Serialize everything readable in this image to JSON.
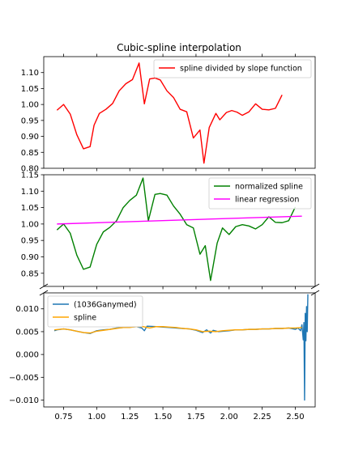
{
  "chart_data": [
    {
      "type": "line",
      "title": "Cubic-spline interpolation",
      "xlim": [
        0.6,
        2.65
      ],
      "ylim": [
        0.8,
        1.15
      ],
      "yticks": [
        0.8,
        0.85,
        0.9,
        0.95,
        1.0,
        1.05,
        1.1
      ],
      "ytick_labels": [
        "0.80",
        "0.85",
        "0.90",
        "0.95",
        "1.00",
        "1.05",
        "1.10"
      ],
      "legend": "top-right",
      "series": [
        {
          "name": "spline divided by slope function",
          "color": "#ff0000",
          "x": [
            0.7,
            0.75,
            0.8,
            0.85,
            0.9,
            0.95,
            0.98,
            1.02,
            1.07,
            1.12,
            1.17,
            1.22,
            1.27,
            1.32,
            1.36,
            1.4,
            1.44,
            1.48,
            1.53,
            1.58,
            1.63,
            1.68,
            1.73,
            1.78,
            1.81,
            1.85,
            1.9,
            1.93,
            1.98,
            2.02,
            2.06,
            2.1,
            2.15,
            2.2,
            2.25,
            2.3,
            2.35,
            2.4,
            2.45,
            2.5,
            2.55
          ],
          "y": [
            0.982,
            1.0,
            0.97,
            0.905,
            0.861,
            0.868,
            0.935,
            0.972,
            0.985,
            1.003,
            1.043,
            1.065,
            1.078,
            1.13,
            1.002,
            1.08,
            1.083,
            1.077,
            1.043,
            1.022,
            0.985,
            0.977,
            0.895,
            0.92,
            0.816,
            0.928,
            0.972,
            0.952,
            0.975,
            0.981,
            0.976,
            0.966,
            0.977,
            1.002,
            0.985,
            0.983,
            0.988,
            1.03,
            null,
            null,
            null
          ]
        }
      ]
    },
    {
      "type": "line",
      "xlim": [
        0.6,
        2.65
      ],
      "ylim": [
        0.81,
        1.15
      ],
      "yticks": [
        0.85,
        0.9,
        0.95,
        1.0,
        1.05,
        1.1,
        1.15
      ],
      "ytick_labels": [
        "0.85",
        "0.90",
        "0.95",
        "1.00",
        "1.05",
        "1.10",
        "1.15"
      ],
      "legend": "top-right",
      "series": [
        {
          "name": "normalized spline",
          "color": "#008000",
          "x": [
            0.7,
            0.75,
            0.8,
            0.85,
            0.9,
            0.95,
            1.0,
            1.05,
            1.1,
            1.15,
            1.2,
            1.25,
            1.3,
            1.35,
            1.39,
            1.44,
            1.48,
            1.53,
            1.58,
            1.63,
            1.68,
            1.73,
            1.78,
            1.82,
            1.86,
            1.91,
            1.95,
            2.0,
            2.05,
            2.1,
            2.15,
            2.2,
            2.25,
            2.3,
            2.35,
            2.4,
            2.45,
            2.5,
            2.55
          ],
          "y": [
            0.982,
            1.0,
            0.972,
            0.905,
            0.862,
            0.869,
            0.938,
            0.976,
            0.99,
            1.01,
            1.05,
            1.072,
            1.088,
            1.14,
            1.01,
            1.09,
            1.093,
            1.088,
            1.055,
            1.03,
            0.998,
            0.988,
            0.908,
            0.934,
            0.828,
            0.942,
            0.988,
            0.968,
            0.992,
            0.998,
            0.994,
            0.985,
            0.998,
            1.022,
            1.005,
            1.004,
            1.01,
            1.052,
            null
          ]
        },
        {
          "name": "linear regression",
          "color": "#ff00ff",
          "x": [
            0.7,
            2.55
          ],
          "y": [
            1.0,
            1.024
          ]
        }
      ]
    },
    {
      "type": "line",
      "xlim": [
        0.6,
        2.65
      ],
      "ylim": [
        -0.0115,
        0.0135
      ],
      "yticks": [
        -0.01,
        -0.005,
        0.0,
        0.005,
        0.01
      ],
      "ytick_labels": [
        "−0.010",
        "−0.005",
        "0.000",
        "0.005",
        "0.010"
      ],
      "xticks": [
        0.75,
        1.0,
        1.25,
        1.5,
        1.75,
        2.0,
        2.25,
        2.5
      ],
      "xtick_labels": [
        "0.75",
        "1.00",
        "1.25",
        "1.50",
        "1.75",
        "2.00",
        "2.25",
        "2.50"
      ],
      "legend": "top-left",
      "series": [
        {
          "name": "(1036Ganymed)",
          "color": "#1f77b4",
          "x": [
            0.68,
            0.7,
            0.75,
            0.8,
            0.85,
            0.9,
            0.95,
            1.0,
            1.05,
            1.1,
            1.15,
            1.2,
            1.25,
            1.3,
            1.34,
            1.36,
            1.38,
            1.45,
            1.5,
            1.55,
            1.6,
            1.65,
            1.7,
            1.75,
            1.8,
            1.83,
            1.86,
            1.88,
            1.92,
            2.0,
            2.05,
            2.1,
            2.15,
            2.2,
            2.25,
            2.3,
            2.35,
            2.4,
            2.45,
            2.5,
            2.52,
            2.54,
            2.55,
            2.56,
            2.565,
            2.57,
            2.575,
            2.58,
            2.585,
            2.59,
            2.595
          ],
          "y": [
            0.0052,
            0.0054,
            0.0056,
            0.0054,
            0.0051,
            0.0048,
            0.0046,
            0.0052,
            0.0054,
            0.0055,
            0.0058,
            0.0059,
            0.006,
            0.0061,
            0.0058,
            0.0052,
            0.0062,
            0.0061,
            0.006,
            0.0059,
            0.0058,
            0.0057,
            0.0056,
            0.0053,
            0.0048,
            0.0054,
            0.0047,
            0.0053,
            0.005,
            0.0052,
            0.0054,
            0.0054,
            0.0055,
            0.0055,
            0.0056,
            0.0056,
            0.0057,
            0.0057,
            0.0058,
            0.0055,
            0.0058,
            0.0052,
            0.0065,
            0.0032,
            0.007,
            -0.01,
            0.009,
            0.003,
            0.0105,
            0.005,
            0.0132
          ]
        },
        {
          "name": "spline",
          "color": "#ffa500",
          "x": [
            0.68,
            0.75,
            0.8,
            0.85,
            0.9,
            0.95,
            1.0,
            1.05,
            1.1,
            1.15,
            1.2,
            1.25,
            1.3,
            1.35,
            1.4,
            1.45,
            1.5,
            1.55,
            1.6,
            1.65,
            1.7,
            1.75,
            1.8,
            1.85,
            1.9,
            1.95,
            2.0,
            2.05,
            2.1,
            2.15,
            2.2,
            2.25,
            2.3,
            2.35,
            2.4,
            2.45,
            2.5,
            2.55
          ],
          "y": [
            0.0054,
            0.0056,
            0.0054,
            0.0051,
            0.0048,
            0.0047,
            0.0051,
            0.0053,
            0.0055,
            0.0057,
            0.0059,
            0.0059,
            0.0061,
            0.0061,
            0.0058,
            0.0061,
            0.0061,
            0.006,
            0.0059,
            0.0057,
            0.0056,
            0.0054,
            0.005,
            0.0051,
            0.005,
            0.0052,
            0.0053,
            0.0054,
            0.0054,
            0.0055,
            0.0055,
            0.0056,
            0.0056,
            0.0057,
            0.0057,
            0.0058,
            0.0058,
            0.0059
          ]
        }
      ]
    }
  ]
}
